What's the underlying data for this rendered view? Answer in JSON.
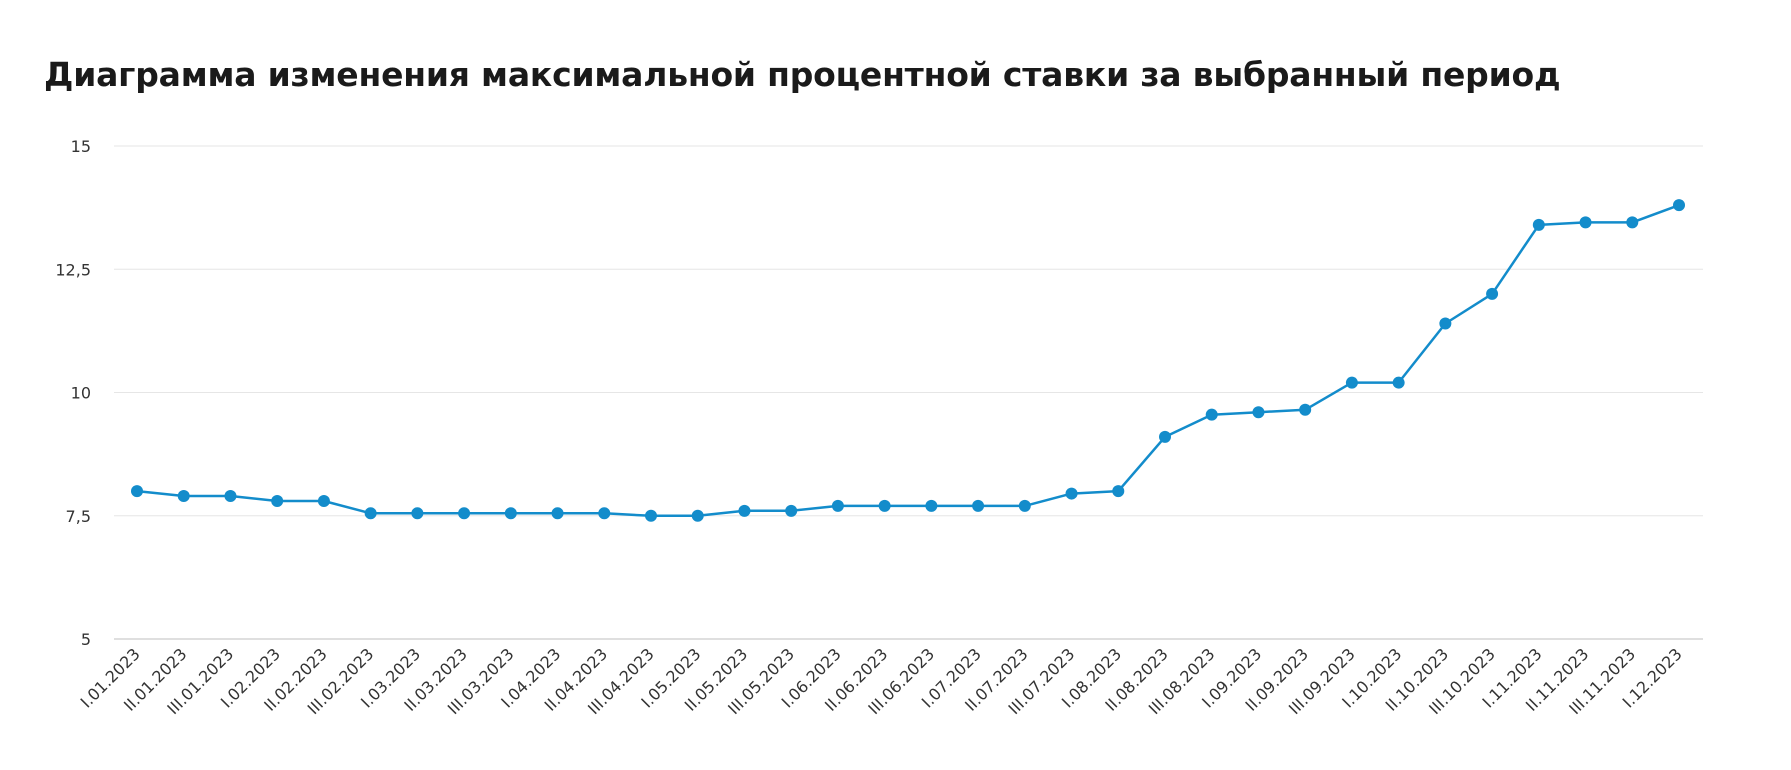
{
  "chart_data": {
    "type": "line",
    "title": "Диаграмма изменения максимальной процентной ставки за выбранный период",
    "xlabel": "",
    "ylabel": "",
    "ylim": [
      5,
      15
    ],
    "yticks": [
      5,
      7.5,
      10,
      12.5,
      15
    ],
    "ytick_labels": [
      "5",
      "7,5",
      "10",
      "12,5",
      "15"
    ],
    "grid": true,
    "legend": "none",
    "colors": {
      "line": "#138ccb",
      "point": "#138ccb",
      "grid": "#e6e6e6"
    },
    "categories": [
      "I.01.2023",
      "II.01.2023",
      "III.01.2023",
      "I.02.2023",
      "II.02.2023",
      "III.02.2023",
      "I.03.2023",
      "II.03.2023",
      "III.03.2023",
      "I.04.2023",
      "II.04.2023",
      "III.04.2023",
      "I.05.2023",
      "II.05.2023",
      "III.05.2023",
      "I.06.2023",
      "II.06.2023",
      "III.06.2023",
      "I.07.2023",
      "II.07.2023",
      "III.07.2023",
      "I.08.2023",
      "II.08.2023",
      "III.08.2023",
      "I.09.2023",
      "II.09.2023",
      "III.09.2023",
      "I.10.2023",
      "II.10.2023",
      "III.10.2023",
      "I.11.2023",
      "II.11.2023",
      "III.11.2023",
      "I.12.2023"
    ],
    "values": [
      8.0,
      7.9,
      7.9,
      7.8,
      7.8,
      7.55,
      7.55,
      7.55,
      7.55,
      7.55,
      7.55,
      7.5,
      7.5,
      7.6,
      7.6,
      7.7,
      7.7,
      7.7,
      7.7,
      7.7,
      7.95,
      8.0,
      9.1,
      9.55,
      9.6,
      9.65,
      10.2,
      10.2,
      11.4,
      12.0,
      13.4,
      13.45,
      13.45,
      13.8
    ]
  }
}
